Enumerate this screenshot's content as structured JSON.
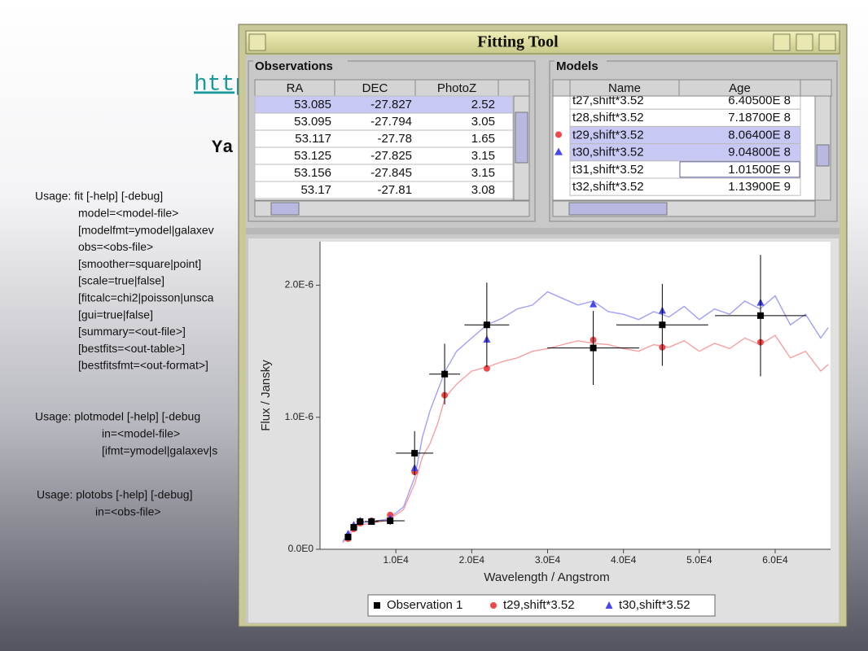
{
  "slide": {
    "link": "http",
    "heading": "Ya",
    "usage_fit": [
      "Usage: fit [-help] [-debug]",
      "model=<model-file>",
      "[modelfmt=ymodel|galaxev",
      "obs=<obs-file>",
      "[smoother=square|point]",
      "[scale=true|false]",
      "[fitcalc=chi2|poisson|unsca",
      "[gui=true|false]",
      "[summary=<out-file>]",
      "[bestfits=<out-table>]",
      "[bestfitsfmt=<out-format>]"
    ],
    "usage_plotmodel": [
      "Usage: plotmodel [-help] [-debug",
      "in=<model-file>",
      "[ifmt=ymodel|galaxev|s"
    ],
    "usage_plotobs": [
      "Usage: plotobs [-help] [-debug]",
      "in=<obs-file>"
    ]
  },
  "window": {
    "title": "Fitting Tool",
    "observations": {
      "title": "Observations",
      "columns": [
        "RA",
        "DEC",
        "PhotoZ"
      ],
      "rows": [
        [
          "53.085",
          "-27.827",
          "2.52"
        ],
        [
          "53.095",
          "-27.794",
          "3.05"
        ],
        [
          "53.117",
          "-27.78",
          "1.65"
        ],
        [
          "53.125",
          "-27.825",
          "3.15"
        ],
        [
          "53.156",
          "-27.845",
          "3.15"
        ],
        [
          "53.17",
          "-27.81",
          "3.08"
        ]
      ]
    },
    "models": {
      "title": "Models",
      "columns": [
        "Name",
        "Age"
      ],
      "rows": [
        [
          "t27,shift*3.52",
          "6.40500E 8"
        ],
        [
          "t28,shift*3.52",
          "7.18700E 8"
        ],
        [
          "t29,shift*3.52",
          "8.06400E 8"
        ],
        [
          "t30,shift*3.52",
          "9.04800E 8"
        ],
        [
          "t31,shift*3.52",
          "1.01500E 9"
        ],
        [
          "t32,shift*3.52",
          "1.13900E 9"
        ]
      ]
    }
  },
  "chart_data": {
    "type": "scatter",
    "x_label": "Wavelength / Angstrom",
    "y_label": "Flux / Jansky",
    "xlim": [
      0,
      67300
    ],
    "ylim": [
      0,
      2.33e-06
    ],
    "xticks": [
      {
        "value": 10000,
        "label": "1.0E4"
      },
      {
        "value": 20000,
        "label": "2.0E4"
      },
      {
        "value": 30000,
        "label": "3.0E4"
      },
      {
        "value": 40000,
        "label": "4.0E4"
      },
      {
        "value": 50000,
        "label": "5.0E4"
      },
      {
        "value": 60000,
        "label": "6.0E4"
      }
    ],
    "yticks": [
      {
        "value": 0,
        "label": "0.0E0"
      },
      {
        "value": 1e-06,
        "label": "1.0E-6"
      },
      {
        "value": 2e-06,
        "label": "2.0E-6"
      }
    ],
    "x": [
      3700,
      4450,
      5290,
      6790,
      9250,
      12470,
      16430,
      21990,
      36020,
      45120,
      58070
    ],
    "spectrum_x": [
      3000,
      4000,
      5000,
      7000,
      9000,
      11000,
      12500,
      13500,
      14500,
      15500,
      16500,
      18000,
      20000,
      22000,
      24000,
      26000,
      28000,
      30000,
      32000,
      34000,
      36000,
      38000,
      40000,
      42000,
      44000,
      46000,
      48000,
      50000,
      52000,
      54000,
      56000,
      58000,
      60000,
      62000,
      64000,
      66000,
      67000
    ],
    "series": [
      {
        "name": "Observation 1",
        "color": "#000000",
        "marker": "square",
        "values": [
          9.3e-08,
          1.67e-07,
          2.1e-07,
          2.1e-07,
          2.16e-07,
          7.28e-07,
          1.327e-06,
          1.7e-06,
          1.525e-06,
          1.7e-06,
          1.77e-06
        ],
        "errors": [
          2e-08,
          2e-08,
          2e-08,
          2e-08,
          3e-08,
          1.67e-07,
          2.3e-07,
          3.2e-07,
          2.8e-07,
          3.1e-07,
          4.6e-07
        ],
        "x_errors": [
          300,
          400,
          500,
          900,
          1900,
          2460,
          2030,
          2950,
          6050,
          6050,
          6000
        ]
      },
      {
        "name": "t29,shift*3.52",
        "color": "#f04848",
        "marker": "circle",
        "spectrum_color": "#f8a0a0",
        "values": [
          8e-08,
          1.54e-07,
          1.98e-07,
          2.16e-07,
          2.6e-07,
          5.86e-07,
          1.167e-06,
          1.37e-06,
          1.586e-06,
          1.53e-06,
          1.568e-06
        ],
        "spectrum": [
          5e-08,
          1.2e-07,
          1.8e-07,
          2e-07,
          2.2e-07,
          3e-07,
          5e-07,
          7e-07,
          8e-07,
          9.5e-07,
          1.15e-06,
          1.25e-06,
          1.35e-06,
          1.38e-06,
          1.42e-06,
          1.45e-06,
          1.5e-06,
          1.52e-06,
          1.55e-06,
          1.58e-06,
          1.56e-06,
          1.55e-06,
          1.52e-06,
          1.5e-06,
          1.55e-06,
          1.53e-06,
          1.58e-06,
          1.5e-06,
          1.56e-06,
          1.52e-06,
          1.6e-06,
          1.55e-06,
          1.62e-06,
          1.45e-06,
          1.5e-06,
          1.35e-06,
          1.4e-06
        ]
      },
      {
        "name": "t30,shift*3.52",
        "color": "#4848f0",
        "marker": "triangle",
        "spectrum_color": "#a0a0f8",
        "values": [
          1.17e-07,
          1.85e-07,
          2.16e-07,
          2.1e-07,
          2.35e-07,
          6.17e-07,
          1.333e-06,
          1.59e-06,
          1.858e-06,
          1.809e-06,
          1.87e-06
        ],
        "spectrum": [
          6e-08,
          1.4e-07,
          2e-07,
          2.1e-07,
          2.3e-07,
          3.2e-07,
          5.5e-07,
          8.5e-07,
          1.05e-06,
          1.2e-06,
          1.35e-06,
          1.5e-06,
          1.6e-06,
          1.7e-06,
          1.75e-06,
          1.82e-06,
          1.85e-06,
          1.95e-06,
          1.9e-06,
          1.85e-06,
          1.88e-06,
          1.8e-06,
          1.78e-06,
          1.74e-06,
          1.8e-06,
          1.76e-06,
          1.84e-06,
          1.74e-06,
          1.82e-06,
          1.78e-06,
          1.88e-06,
          1.82e-06,
          1.92e-06,
          1.7e-06,
          1.78e-06,
          1.6e-06,
          1.68e-06
        ]
      }
    ]
  }
}
